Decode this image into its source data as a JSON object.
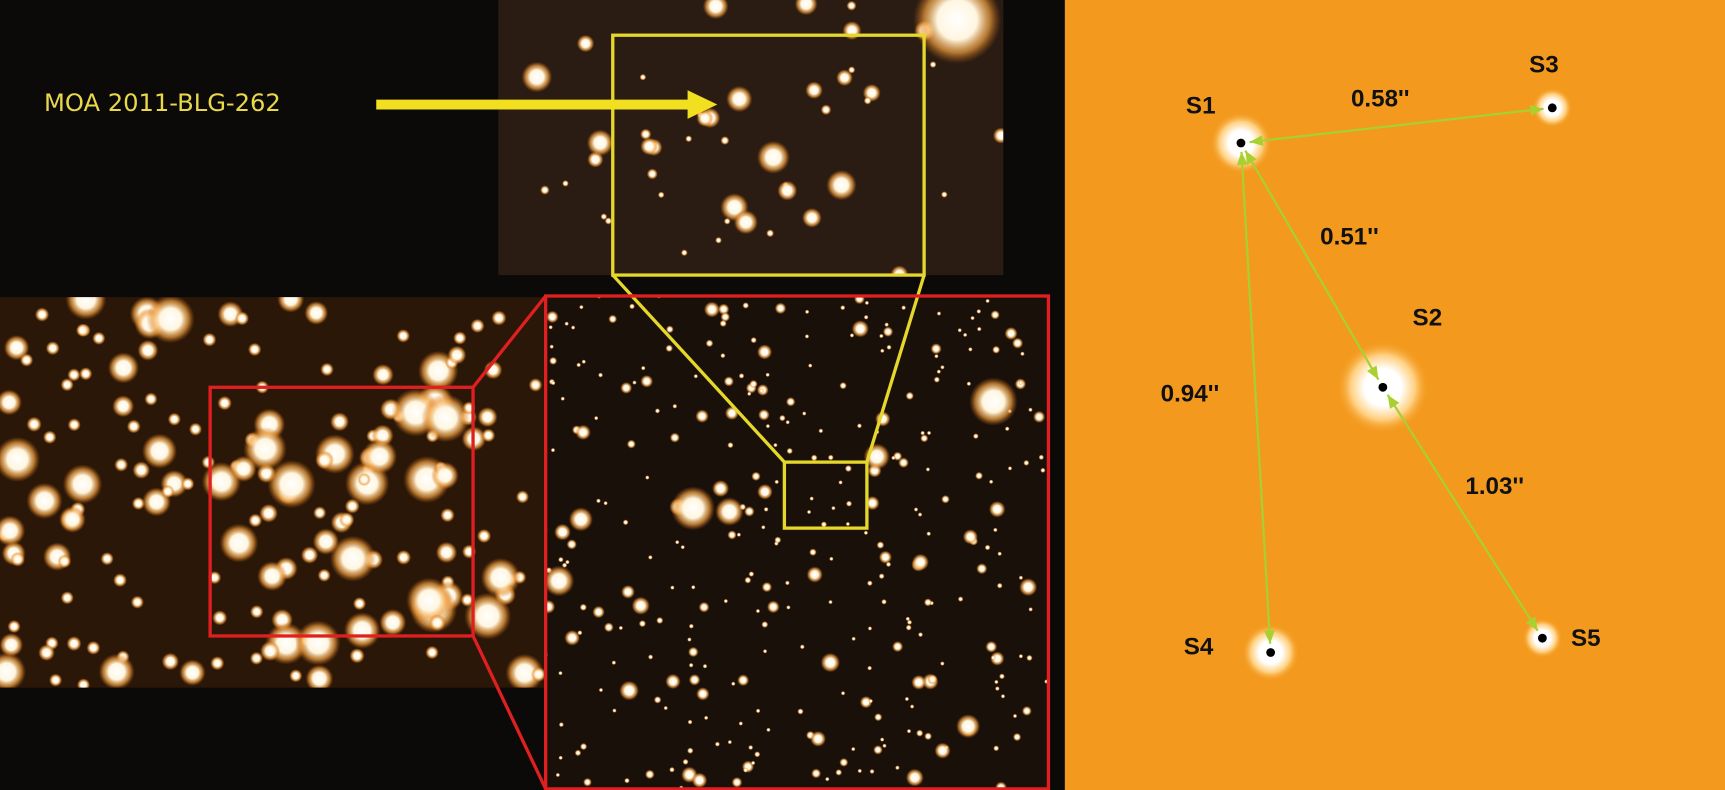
{
  "target_label": "MOA 2011-BLG-262",
  "stars": [
    {
      "name": "S1"
    },
    {
      "name": "S2"
    },
    {
      "name": "S3"
    },
    {
      "name": "S4"
    },
    {
      "name": "S5"
    }
  ],
  "separations": [
    {
      "label": "0.58''"
    },
    {
      "label": "0.51''"
    },
    {
      "label": "0.94''"
    },
    {
      "label": "1.03''"
    }
  ]
}
